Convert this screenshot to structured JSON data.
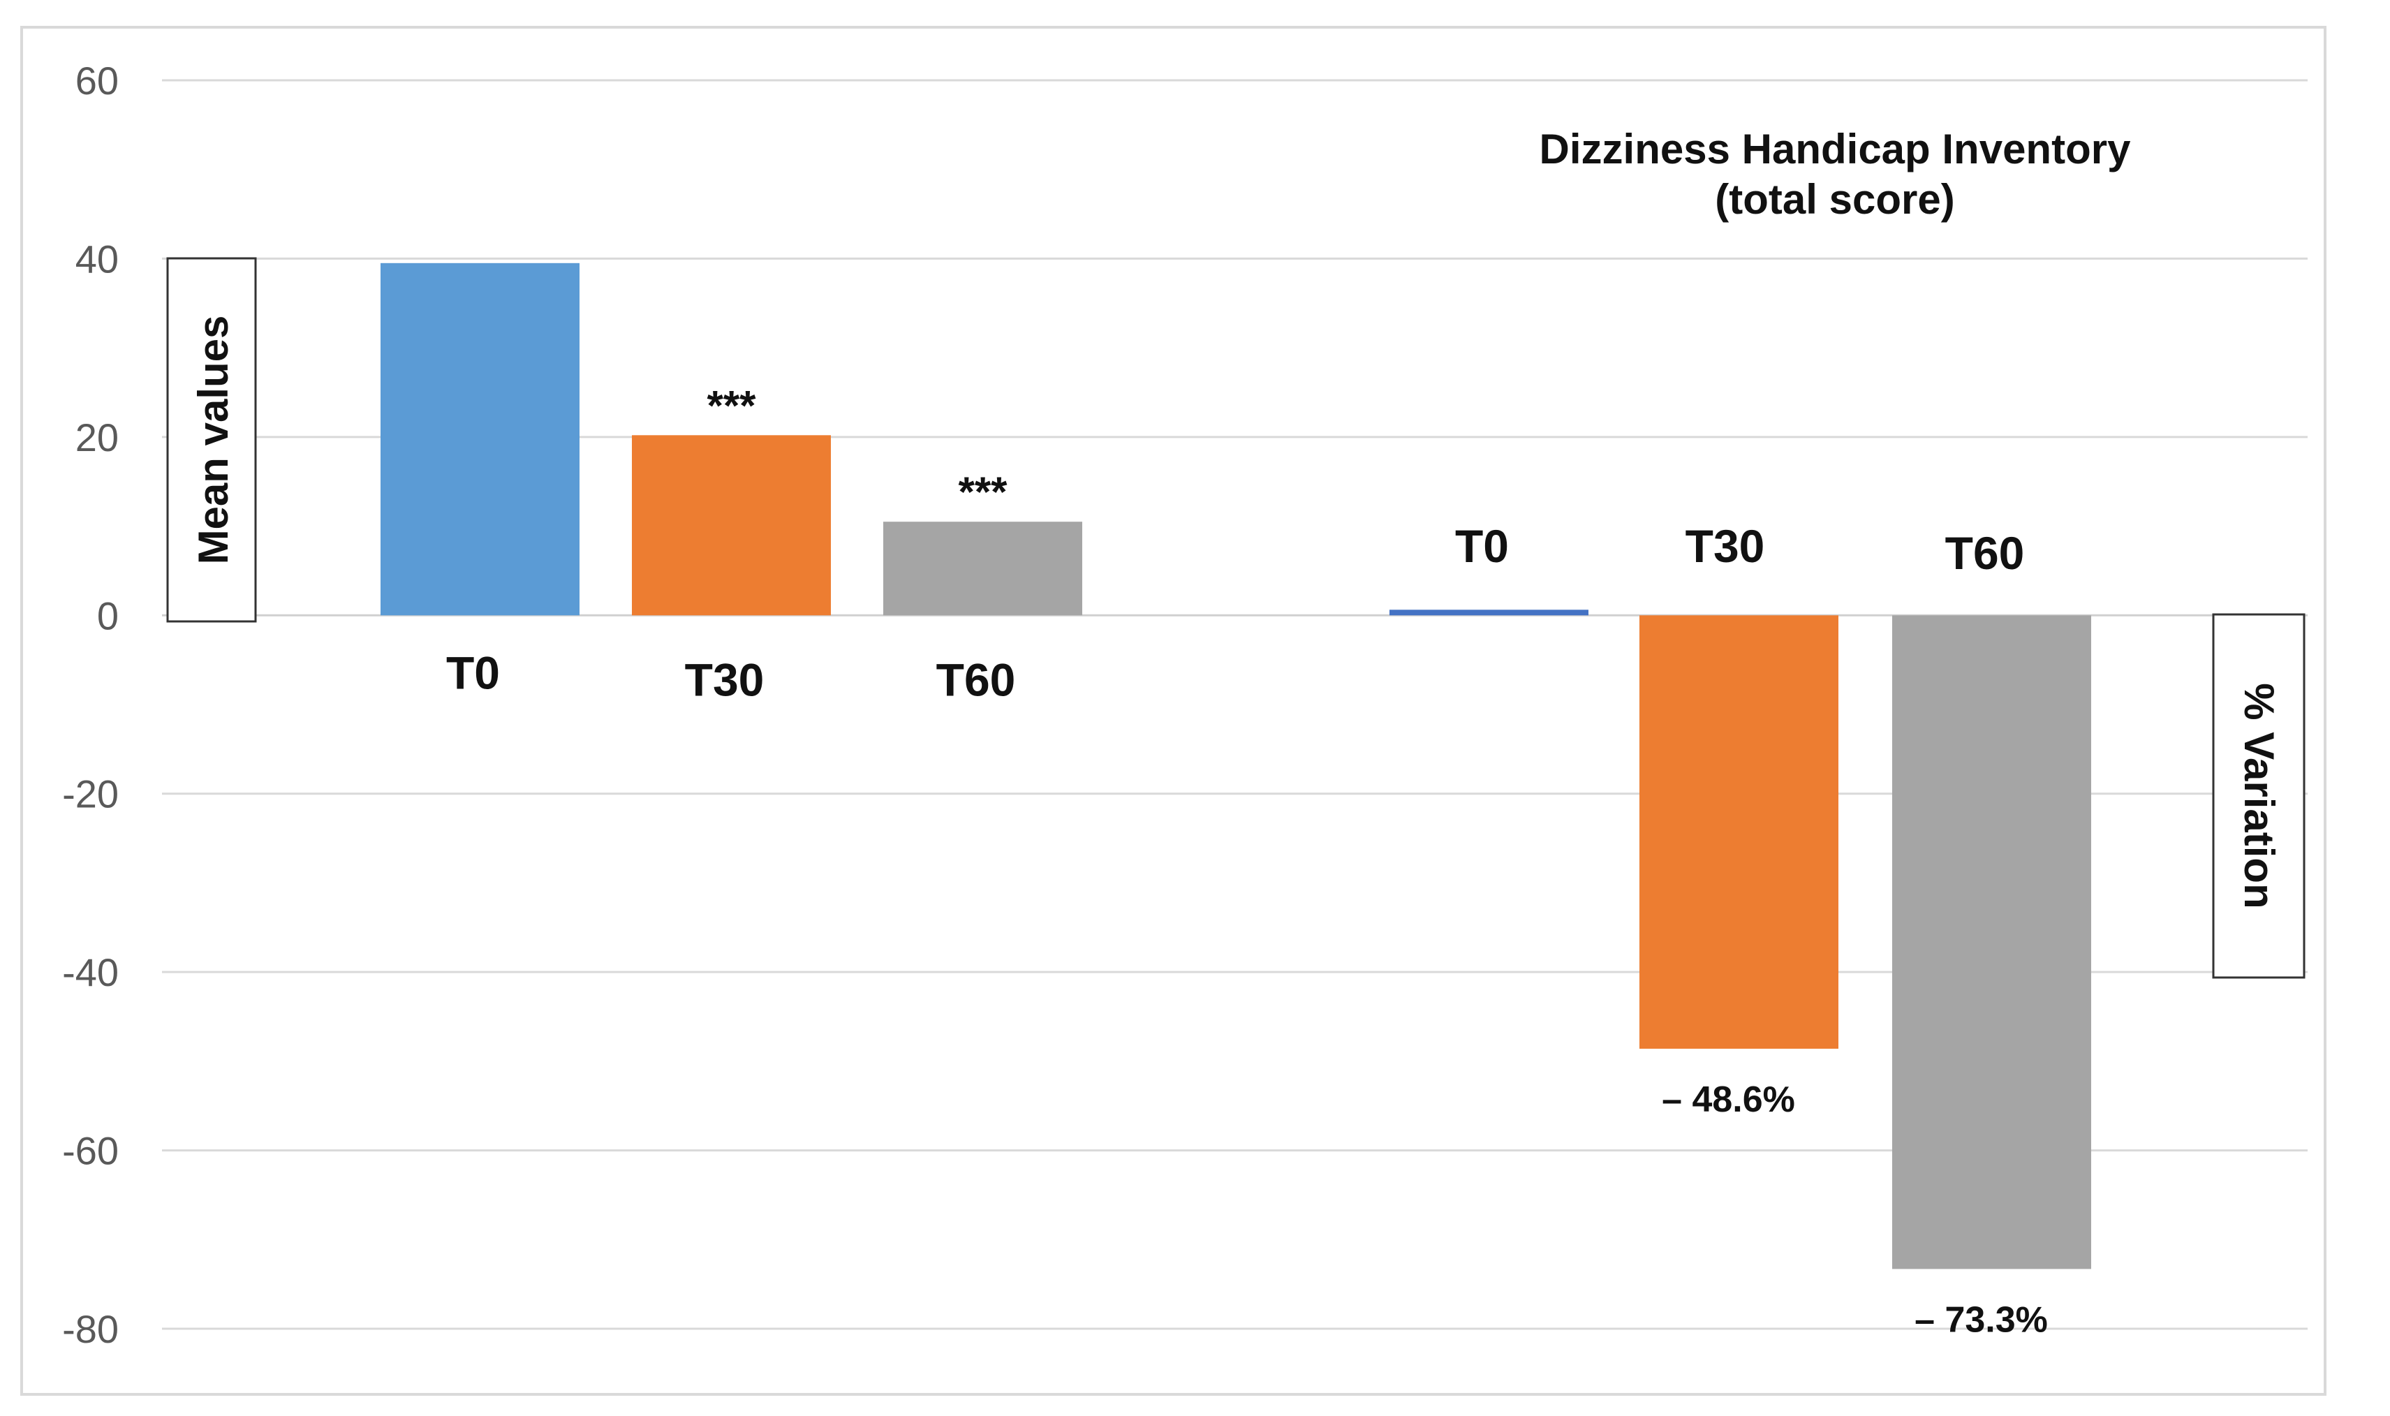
{
  "chart_data": {
    "type": "bar",
    "title": [
      "Dizziness Handicap Inventory",
      "(total score)"
    ],
    "ylim": [
      -80,
      60
    ],
    "yticks": [
      60,
      40,
      20,
      0,
      -20,
      -40,
      -60,
      -80
    ],
    "left_axis_label": "Mean values",
    "right_axis_label": "% Variation",
    "series": [
      {
        "name": "Mean values",
        "categories": [
          "T0",
          "T30",
          "T60"
        ],
        "values": [
          39.5,
          20.2,
          10.5
        ],
        "significance": [
          "",
          "***",
          "***"
        ],
        "colors": [
          "#5b9bd5",
          "#ed7d31",
          "#a5a5a5"
        ]
      },
      {
        "name": "% Variation",
        "categories": [
          "T0",
          "T30",
          "T60"
        ],
        "values": [
          0.5,
          -48.6,
          -73.3
        ],
        "value_labels": [
          "",
          "– 48.6%",
          "– 73.3%"
        ],
        "colors": [
          "#4472c4",
          "#ed7d31",
          "#a5a5a5"
        ]
      }
    ]
  }
}
